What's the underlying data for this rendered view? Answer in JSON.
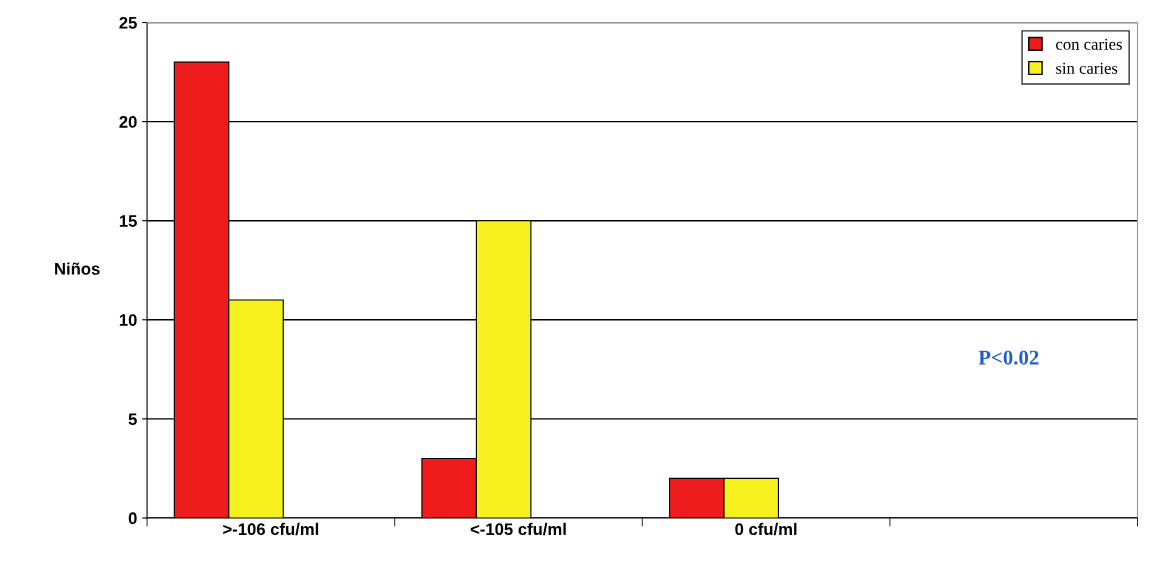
{
  "chart_data": {
    "type": "bar",
    "ylabel": "Niños",
    "categories": [
      ">-106 cfu/ml",
      "<-105 cfu/ml",
      "0 cfu/ml",
      null
    ],
    "series": [
      {
        "name": "con caries",
        "color": "#ee1c1c",
        "values": [
          23,
          3,
          2,
          null
        ]
      },
      {
        "name": "sin caries",
        "color": "#f5f01e",
        "values": [
          11,
          15,
          2,
          null
        ]
      }
    ],
    "ylim": [
      0,
      25
    ],
    "yticks": [
      0,
      5,
      10,
      15,
      20,
      25
    ],
    "grid": "y",
    "legend": "top right",
    "annotations": [
      "P<0.02"
    ]
  }
}
